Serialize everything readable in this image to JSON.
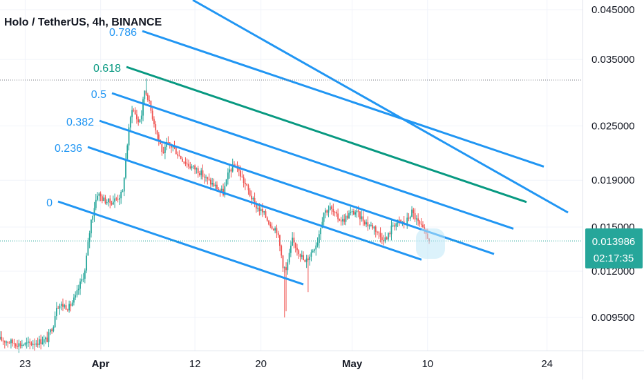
{
  "title": "Holo / TetherUS, 4h, BINANCE",
  "colors": {
    "up": "#26a69a",
    "down": "#ef5350",
    "fib": "#2196f3",
    "fib_618": "#089981",
    "grid": "#f0f3fa",
    "axis_text": "#131722",
    "price_label_bg": "#26a69a"
  },
  "price_label": {
    "price": "0.013986",
    "countdown": "02:17:35"
  },
  "chart_data": {
    "type": "candlestick",
    "title": "Holo / TetherUS, 4h, BINANCE",
    "y_axis_ticks": [
      "0.045000",
      "0.035000",
      "0.025000",
      "0.019000",
      "0.015000",
      "0.012000",
      "0.009500"
    ],
    "y_axis_tick_values": [
      0.045,
      0.035,
      0.025,
      0.019,
      0.015,
      0.012,
      0.0095
    ],
    "x_axis_ticks": [
      "23",
      "Apr",
      "12",
      "20",
      "May",
      "10",
      "24"
    ],
    "last_price": 0.013986,
    "fib_levels": [
      "0",
      "0.236",
      "0.382",
      "0.5",
      "0.618",
      "0.786"
    ],
    "price_path": [
      [
        0,
        0.0085
      ],
      [
        3,
        0.0084
      ],
      [
        6,
        0.0083
      ],
      [
        9,
        0.0083
      ],
      [
        12,
        0.0084
      ],
      [
        15,
        0.0085
      ],
      [
        17,
        0.0092
      ],
      [
        18,
        0.0101
      ],
      [
        20,
        0.0101
      ],
      [
        22,
        0.01
      ],
      [
        24,
        0.0105
      ],
      [
        27,
        0.012
      ],
      [
        29,
        0.0155
      ],
      [
        31,
        0.0178
      ],
      [
        33,
        0.0172
      ],
      [
        35,
        0.017
      ],
      [
        37,
        0.0173
      ],
      [
        39,
        0.0178
      ],
      [
        41,
        0.0245
      ],
      [
        42,
        0.0275
      ],
      [
        44,
        0.0255
      ],
      [
        45,
        0.0265
      ],
      [
        46,
        0.03
      ],
      [
        47,
        0.029
      ],
      [
        48,
        0.027
      ],
      [
        50,
        0.024
      ],
      [
        52,
        0.0215
      ],
      [
        53,
        0.0228
      ],
      [
        55,
        0.0225
      ],
      [
        57,
        0.0215
      ],
      [
        60,
        0.0205
      ],
      [
        63,
        0.02
      ],
      [
        66,
        0.019
      ],
      [
        69,
        0.0183
      ],
      [
        71,
        0.0178
      ],
      [
        73,
        0.02
      ],
      [
        75,
        0.0205
      ],
      [
        77,
        0.0192
      ],
      [
        79,
        0.018
      ],
      [
        81,
        0.0168
      ],
      [
        84,
        0.016
      ],
      [
        86,
        0.0152
      ],
      [
        88,
        0.0148
      ],
      [
        90,
        0.0124
      ],
      [
        91,
        0.012
      ],
      [
        93,
        0.014
      ],
      [
        95,
        0.0133
      ],
      [
        97,
        0.0125
      ],
      [
        99,
        0.0132
      ],
      [
        101,
        0.014
      ],
      [
        103,
        0.0162
      ],
      [
        105,
        0.0165
      ],
      [
        107,
        0.0158
      ],
      [
        109,
        0.0155
      ],
      [
        111,
        0.016
      ],
      [
        113,
        0.0162
      ],
      [
        115,
        0.0157
      ],
      [
        117,
        0.0152
      ],
      [
        119,
        0.015
      ],
      [
        121,
        0.0143
      ],
      [
        123,
        0.0141
      ],
      [
        125,
        0.0152
      ],
      [
        127,
        0.0154
      ],
      [
        129,
        0.0153
      ],
      [
        131,
        0.0162
      ],
      [
        133,
        0.0153
      ],
      [
        135,
        0.0146
      ],
      [
        137,
        0.014
      ]
    ]
  }
}
